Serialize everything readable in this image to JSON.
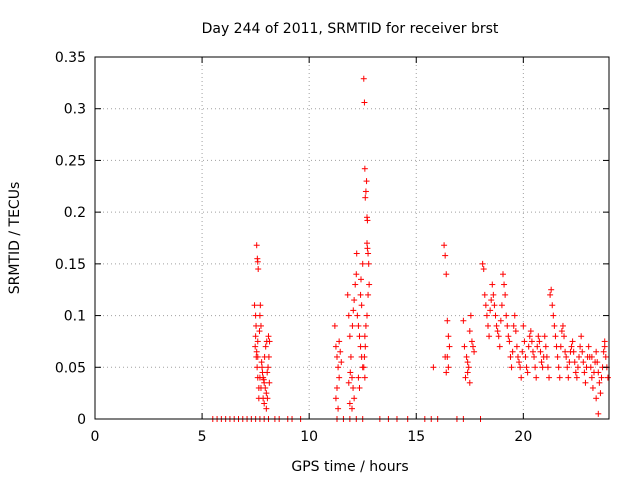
{
  "chart_data": {
    "type": "scatter",
    "title": "Day 244 of 2011, SRMTID for receiver brst",
    "xlabel": "GPS time / hours",
    "ylabel": "SRMTID / TECUs",
    "xlim": [
      0,
      24
    ],
    "ylim": [
      0,
      0.35
    ],
    "x_ticks": [
      "0",
      "5",
      "10",
      "15",
      "20"
    ],
    "x_tick_values": [
      0,
      5,
      10,
      15,
      20
    ],
    "y_ticks": [
      "0",
      "0.05",
      "0.1",
      "0.15",
      "0.2",
      "0.25",
      "0.3",
      "0.35"
    ],
    "y_tick_values": [
      0,
      0.05,
      0.1,
      0.15,
      0.2,
      0.25,
      0.3,
      0.35
    ],
    "grid": true,
    "marker": "+",
    "color": "#ff0000",
    "series": [
      {
        "values": [
          [
            5.5,
            0
          ],
          [
            5.7,
            0
          ],
          [
            5.9,
            0
          ],
          [
            6.1,
            0
          ],
          [
            6.3,
            0
          ],
          [
            6.5,
            0
          ],
          [
            6.7,
            0
          ],
          [
            6.9,
            0
          ],
          [
            7.1,
            0
          ],
          [
            7.3,
            0
          ],
          [
            7.5,
            0
          ],
          [
            7.7,
            0
          ],
          [
            7.9,
            0
          ],
          [
            8.1,
            0
          ],
          [
            8.4,
            0
          ],
          [
            8.6,
            0
          ],
          [
            9.0,
            0
          ],
          [
            9.2,
            0
          ],
          [
            9.6,
            0
          ],
          [
            11.3,
            0
          ],
          [
            11.6,
            0
          ],
          [
            11.9,
            0
          ],
          [
            12.2,
            0
          ],
          [
            12.5,
            0
          ],
          [
            13.3,
            0
          ],
          [
            13.7,
            0
          ],
          [
            14.1,
            0
          ],
          [
            14.6,
            0
          ],
          [
            15.4,
            0
          ],
          [
            15.7,
            0
          ],
          [
            16.0,
            0
          ],
          [
            16.9,
            0
          ],
          [
            17.2,
            0
          ],
          [
            18.0,
            0
          ],
          [
            7.45,
            0.11
          ],
          [
            7.5,
            0.1
          ],
          [
            7.52,
            0.09
          ],
          [
            7.55,
            0.168
          ],
          [
            7.58,
            0.155
          ],
          [
            7.6,
            0.152
          ],
          [
            7.62,
            0.145
          ],
          [
            7.5,
            0.08
          ],
          [
            7.48,
            0.07
          ],
          [
            7.53,
            0.06
          ],
          [
            7.57,
            0.05
          ],
          [
            7.6,
            0.04
          ],
          [
            7.65,
            0.03
          ],
          [
            7.7,
            0.1
          ],
          [
            7.72,
            0.11
          ],
          [
            7.75,
            0.09
          ],
          [
            7.68,
            0.085
          ],
          [
            7.6,
            0.075
          ],
          [
            7.55,
            0.065
          ],
          [
            7.8,
            0.05
          ],
          [
            7.85,
            0.04
          ],
          [
            7.9,
            0.035
          ],
          [
            7.95,
            0.03
          ],
          [
            8.0,
            0.025
          ],
          [
            8.05,
            0.02
          ],
          [
            7.82,
            0.045
          ],
          [
            7.88,
            0.038
          ],
          [
            7.92,
            0.06
          ],
          [
            7.97,
            0.07
          ],
          [
            8.02,
            0.075
          ],
          [
            8.1,
            0.08
          ],
          [
            8.15,
            0.075
          ],
          [
            8.12,
            0.06
          ],
          [
            8.08,
            0.05
          ],
          [
            8.0,
            0.01
          ],
          [
            7.9,
            0.015
          ],
          [
            7.85,
            0.02
          ],
          [
            7.75,
            0.03
          ],
          [
            7.7,
            0.04
          ],
          [
            7.65,
            0.02
          ],
          [
            7.6,
            0.06
          ],
          [
            7.78,
            0.055
          ],
          [
            8.04,
            0.045
          ],
          [
            8.14,
            0.035
          ],
          [
            11.2,
            0.09
          ],
          [
            11.25,
            0.07
          ],
          [
            11.3,
            0.06
          ],
          [
            11.35,
            0.05
          ],
          [
            11.4,
            0.04
          ],
          [
            11.3,
            0.03
          ],
          [
            11.25,
            0.02
          ],
          [
            11.35,
            0.01
          ],
          [
            11.4,
            0.075
          ],
          [
            11.45,
            0.065
          ],
          [
            11.5,
            0.055
          ],
          [
            11.8,
            0.12
          ],
          [
            11.85,
            0.1
          ],
          [
            11.9,
            0.08
          ],
          [
            11.95,
            0.06
          ],
          [
            12.0,
            0.04
          ],
          [
            12.05,
            0.03
          ],
          [
            12.1,
            0.02
          ],
          [
            11.9,
            0.015
          ],
          [
            12.0,
            0.01
          ],
          [
            11.85,
            0.035
          ],
          [
            11.92,
            0.045
          ],
          [
            12.02,
            0.09
          ],
          [
            12.06,
            0.105
          ],
          [
            12.1,
            0.115
          ],
          [
            12.15,
            0.13
          ],
          [
            12.2,
            0.14
          ],
          [
            12.22,
            0.16
          ],
          [
            12.25,
            0.1
          ],
          [
            12.3,
            0.09
          ],
          [
            12.35,
            0.08
          ],
          [
            12.4,
            0.07
          ],
          [
            12.45,
            0.06
          ],
          [
            12.5,
            0.05
          ],
          [
            12.3,
            0.04
          ],
          [
            12.35,
            0.03
          ],
          [
            12.4,
            0.12
          ],
          [
            12.45,
            0.11
          ],
          [
            12.42,
            0.135
          ],
          [
            12.5,
            0.15
          ],
          [
            12.55,
            0.329
          ],
          [
            12.58,
            0.306
          ],
          [
            12.6,
            0.242
          ],
          [
            12.62,
            0.214
          ],
          [
            12.65,
            0.22
          ],
          [
            12.68,
            0.23
          ],
          [
            12.7,
            0.195
          ],
          [
            12.72,
            0.192
          ],
          [
            12.7,
            0.17
          ],
          [
            12.72,
            0.165
          ],
          [
            12.75,
            0.16
          ],
          [
            12.78,
            0.15
          ],
          [
            12.8,
            0.13
          ],
          [
            12.75,
            0.12
          ],
          [
            12.7,
            0.1
          ],
          [
            12.65,
            0.09
          ],
          [
            12.6,
            0.08
          ],
          [
            12.62,
            0.07
          ],
          [
            12.58,
            0.06
          ],
          [
            12.55,
            0.05
          ],
          [
            12.6,
            0.04
          ],
          [
            15.8,
            0.05
          ],
          [
            16.3,
            0.168
          ],
          [
            16.35,
            0.158
          ],
          [
            16.4,
            0.14
          ],
          [
            16.45,
            0.095
          ],
          [
            16.5,
            0.08
          ],
          [
            16.55,
            0.07
          ],
          [
            16.45,
            0.06
          ],
          [
            16.5,
            0.05
          ],
          [
            16.4,
            0.045
          ],
          [
            16.35,
            0.06
          ],
          [
            17.2,
            0.095
          ],
          [
            17.25,
            0.07
          ],
          [
            17.3,
            0.04
          ],
          [
            17.35,
            0.06
          ],
          [
            17.4,
            0.055
          ],
          [
            17.45,
            0.05
          ],
          [
            17.5,
            0.035
          ],
          [
            17.55,
            0.1
          ],
          [
            17.6,
            0.075
          ],
          [
            17.65,
            0.07
          ],
          [
            17.7,
            0.065
          ],
          [
            17.5,
            0.085
          ],
          [
            17.4,
            0.045
          ],
          [
            18.1,
            0.15
          ],
          [
            18.15,
            0.145
          ],
          [
            18.2,
            0.12
          ],
          [
            18.25,
            0.11
          ],
          [
            18.3,
            0.1
          ],
          [
            18.35,
            0.09
          ],
          [
            18.4,
            0.08
          ],
          [
            18.45,
            0.105
          ],
          [
            18.5,
            0.115
          ],
          [
            18.55,
            0.13
          ],
          [
            18.6,
            0.12
          ],
          [
            18.65,
            0.11
          ],
          [
            18.7,
            0.1
          ],
          [
            18.75,
            0.09
          ],
          [
            18.8,
            0.085
          ],
          [
            18.85,
            0.08
          ],
          [
            18.9,
            0.07
          ],
          [
            18.95,
            0.095
          ],
          [
            19.0,
            0.11
          ],
          [
            19.05,
            0.14
          ],
          [
            19.1,
            0.13
          ],
          [
            19.15,
            0.12
          ],
          [
            19.2,
            0.1
          ],
          [
            19.25,
            0.09
          ],
          [
            19.3,
            0.08
          ],
          [
            19.35,
            0.075
          ],
          [
            19.4,
            0.06
          ],
          [
            19.45,
            0.05
          ],
          [
            19.5,
            0.065
          ],
          [
            19.55,
            0.09
          ],
          [
            19.6,
            0.1
          ],
          [
            19.65,
            0.085
          ],
          [
            19.7,
            0.07
          ],
          [
            19.75,
            0.06
          ],
          [
            19.8,
            0.055
          ],
          [
            19.85,
            0.05
          ],
          [
            19.9,
            0.04
          ],
          [
            19.95,
            0.065
          ],
          [
            20.0,
            0.09
          ],
          [
            20.05,
            0.075
          ],
          [
            20.1,
            0.06
          ],
          [
            20.15,
            0.05
          ],
          [
            20.2,
            0.045
          ],
          [
            20.25,
            0.07
          ],
          [
            20.3,
            0.08
          ],
          [
            20.35,
            0.085
          ],
          [
            20.4,
            0.075
          ],
          [
            20.45,
            0.065
          ],
          [
            20.5,
            0.06
          ],
          [
            20.55,
            0.05
          ],
          [
            20.6,
            0.04
          ],
          [
            20.65,
            0.07
          ],
          [
            20.7,
            0.08
          ],
          [
            20.75,
            0.075
          ],
          [
            20.8,
            0.065
          ],
          [
            20.85,
            0.055
          ],
          [
            20.9,
            0.05
          ],
          [
            20.95,
            0.06
          ],
          [
            21.0,
            0.08
          ],
          [
            21.05,
            0.07
          ],
          [
            21.1,
            0.06
          ],
          [
            21.15,
            0.05
          ],
          [
            21.2,
            0.04
          ],
          [
            21.25,
            0.12
          ],
          [
            21.3,
            0.125
          ],
          [
            21.35,
            0.11
          ],
          [
            21.4,
            0.1
          ],
          [
            21.45,
            0.09
          ],
          [
            21.5,
            0.08
          ],
          [
            21.55,
            0.07
          ],
          [
            21.6,
            0.06
          ],
          [
            21.65,
            0.05
          ],
          [
            21.7,
            0.04
          ],
          [
            21.75,
            0.07
          ],
          [
            21.8,
            0.085
          ],
          [
            21.85,
            0.09
          ],
          [
            21.9,
            0.08
          ],
          [
            21.95,
            0.065
          ],
          [
            22.0,
            0.06
          ],
          [
            22.05,
            0.05
          ],
          [
            22.1,
            0.04
          ],
          [
            22.15,
            0.055
          ],
          [
            22.2,
            0.065
          ],
          [
            22.25,
            0.07
          ],
          [
            22.3,
            0.075
          ],
          [
            22.35,
            0.065
          ],
          [
            22.4,
            0.055
          ],
          [
            22.45,
            0.045
          ],
          [
            22.5,
            0.04
          ],
          [
            22.55,
            0.05
          ],
          [
            22.6,
            0.06
          ],
          [
            22.65,
            0.07
          ],
          [
            22.7,
            0.08
          ],
          [
            22.75,
            0.065
          ],
          [
            22.8,
            0.055
          ],
          [
            22.85,
            0.045
          ],
          [
            22.9,
            0.035
          ],
          [
            22.95,
            0.05
          ],
          [
            23.0,
            0.06
          ],
          [
            23.05,
            0.07
          ],
          [
            23.1,
            0.06
          ],
          [
            23.15,
            0.05
          ],
          [
            23.2,
            0.04
          ],
          [
            23.25,
            0.03
          ],
          [
            23.3,
            0.045
          ],
          [
            23.35,
            0.055
          ],
          [
            23.4,
            0.065
          ],
          [
            23.45,
            0.055
          ],
          [
            23.5,
            0.045
          ],
          [
            23.55,
            0.035
          ],
          [
            23.6,
            0.025
          ],
          [
            23.65,
            0.04
          ],
          [
            23.7,
            0.05
          ],
          [
            23.75,
            0.065
          ],
          [
            23.8,
            0.07
          ],
          [
            23.85,
            0.06
          ],
          [
            23.9,
            0.05
          ],
          [
            23.95,
            0.04
          ],
          [
            23.5,
            0.005
          ],
          [
            23.4,
            0.02
          ],
          [
            23.8,
            0.075
          ],
          [
            23.2,
            0.06
          ]
        ]
      }
    ]
  }
}
